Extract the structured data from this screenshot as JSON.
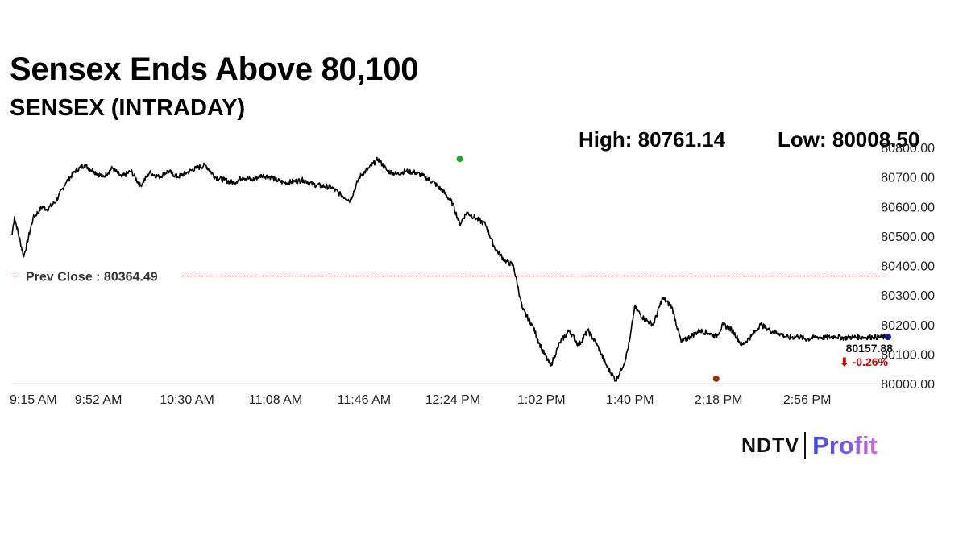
{
  "header": {
    "title": "Sensex Ends Above 80,100",
    "subtitle": "SENSEX (INTRADAY)",
    "high_text": "High: 80761.14",
    "low_text": "Low: 80008.50"
  },
  "logo": {
    "brand": "NDTV",
    "product": "Profit"
  },
  "chart_data": {
    "type": "line",
    "title": "Sensex Ends Above 80,100",
    "subtitle": "SENSEX (INTRADAY)",
    "x_tick_labels": [
      "9:15 AM",
      "9:52 AM",
      "10:30 AM",
      "11:08 AM",
      "11:46 AM",
      "12:24 PM",
      "1:02 PM",
      "1:40 PM",
      "2:18 PM",
      "2:56 PM"
    ],
    "y_tick_labels": [
      "80000.00",
      "80100.00",
      "80200.00",
      "80300.00",
      "80400.00",
      "80500.00",
      "80600.00",
      "80700.00",
      "80800.00"
    ],
    "ylim": [
      80000,
      80800
    ],
    "y_axis_side": "right",
    "grid": false,
    "high": 80761.14,
    "low": 80008.5,
    "prev_close": 80364.49,
    "prev_close_label": "Prev Close : 80364.49",
    "last_value": 80157.88,
    "last_value_label": "80157.88",
    "change_label": "⬇ -0.26%",
    "colors": {
      "line": "#000000",
      "prev_close": "#cc0000",
      "high_marker": "#22aa22",
      "low_marker": "#8b3a0a",
      "last_marker": "#1a1aaa",
      "change": "#cc0000"
    },
    "series": [
      {
        "x": [
          "9:15",
          "9:16",
          "9:20",
          "9:24",
          "9:28",
          "9:30",
          "9:34",
          "9:38",
          "9:42",
          "9:46",
          "9:50",
          "9:54",
          "9:58",
          "10:02",
          "10:06",
          "10:10",
          "10:14",
          "10:18",
          "10:22",
          "10:26",
          "10:30",
          "10:34",
          "10:38",
          "10:42",
          "10:46",
          "10:50",
          "10:54",
          "10:58",
          "11:02",
          "11:06",
          "11:08",
          "11:12",
          "11:16",
          "11:20",
          "11:24",
          "11:28",
          "11:32",
          "11:36",
          "11:40",
          "11:44",
          "11:48",
          "11:52",
          "11:56",
          "12:00",
          "12:04",
          "12:08",
          "12:12",
          "12:16",
          "12:20",
          "12:24",
          "12:27",
          "12:30",
          "12:34",
          "12:38",
          "12:42",
          "12:46",
          "12:50",
          "12:54",
          "12:58",
          "13:02",
          "13:06",
          "13:10",
          "13:14",
          "13:18",
          "13:22",
          "13:26",
          "13:30",
          "13:34",
          "13:38",
          "13:40",
          "13:42",
          "13:46",
          "13:50",
          "13:54",
          "13:58",
          "14:02",
          "14:06",
          "14:10",
          "14:14",
          "14:17",
          "14:20",
          "14:24",
          "14:28",
          "14:32",
          "14:36",
          "14:40",
          "14:44",
          "14:48",
          "14:52",
          "14:56",
          "15:00",
          "15:04",
          "15:08",
          "15:12",
          "15:16",
          "15:20",
          "15:24",
          "15:28",
          "15:30"
        ],
        "values": [
          80505,
          80565,
          80430,
          80560,
          80600,
          80590,
          80620,
          80680,
          80720,
          80740,
          80720,
          80700,
          80730,
          80700,
          80720,
          80670,
          80715,
          80700,
          80720,
          80700,
          80715,
          80730,
          80740,
          80700,
          80690,
          80680,
          80700,
          80690,
          80705,
          80700,
          80690,
          80680,
          80685,
          80690,
          80675,
          80670,
          80665,
          80640,
          80620,
          80700,
          80730,
          80761,
          80720,
          80710,
          80720,
          80715,
          80700,
          80680,
          80650,
          80610,
          80540,
          80580,
          80560,
          80540,
          80460,
          80420,
          80400,
          80250,
          80200,
          80120,
          80060,
          80140,
          80180,
          80130,
          80180,
          80130,
          80060,
          80010,
          80080,
          80150,
          80260,
          80220,
          80200,
          80290,
          80260,
          80140,
          80160,
          80180,
          80170,
          80160,
          80200,
          80180,
          80130,
          80160,
          80200,
          80180,
          80170,
          80155,
          80160,
          80150,
          80158,
          80155,
          80160,
          80155,
          80158,
          80157,
          80158,
          80157,
          80158
        ]
      }
    ]
  }
}
